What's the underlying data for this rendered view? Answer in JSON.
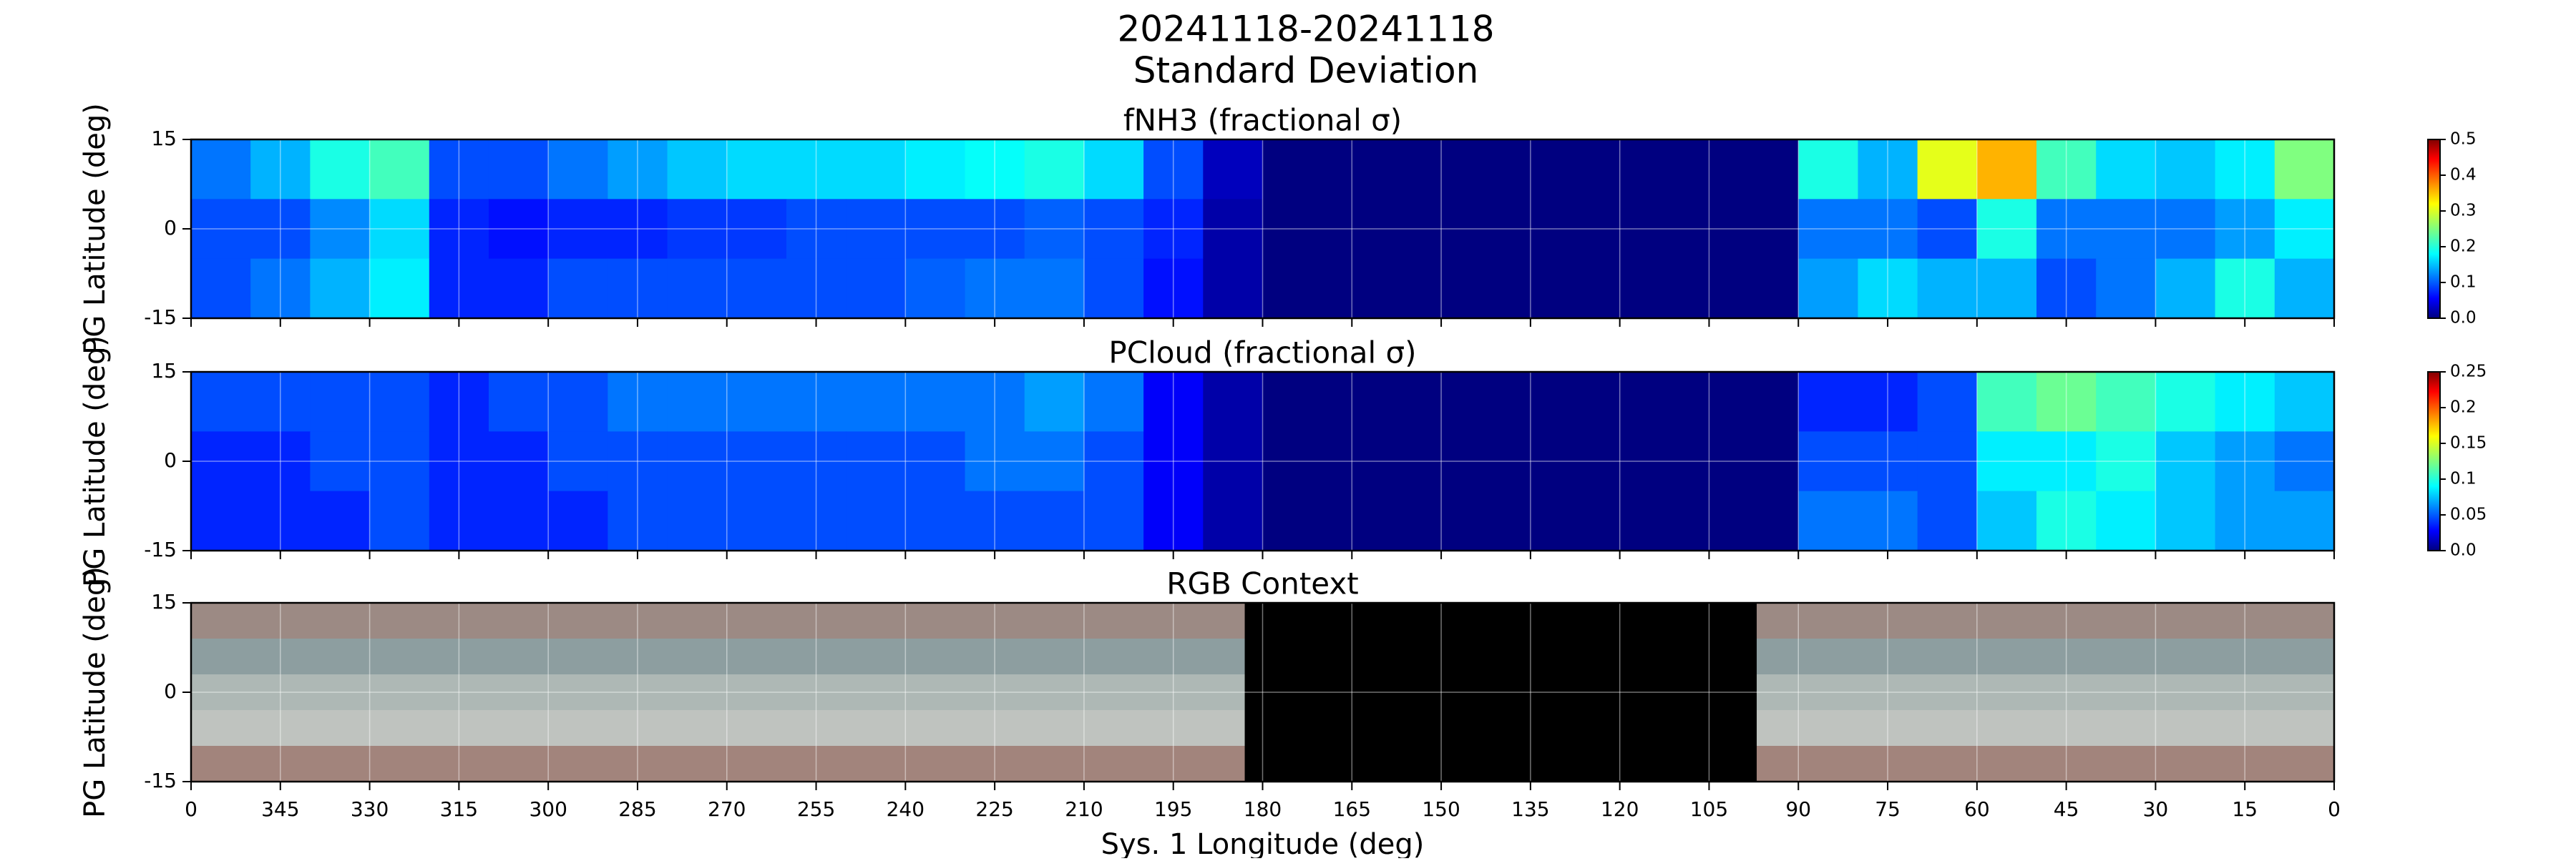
{
  "figure": {
    "title": "20241118-20241118",
    "subtitle": "Standard Deviation"
  },
  "chart_data": [
    {
      "type": "heatmap",
      "title": "fNH3 (fractional σ)",
      "ylabel": "PG Latitude (deg)",
      "xlim": [
        360,
        0
      ],
      "ylim": [
        -15,
        15
      ],
      "yticks": [
        -15,
        0,
        15
      ],
      "grid": true,
      "show_xtick_labels": false,
      "xticks": [
        {
          "value": 360,
          "label": "0"
        },
        345,
        330,
        315,
        300,
        285,
        270,
        255,
        240,
        225,
        210,
        195,
        180,
        165,
        150,
        135,
        120,
        105,
        90,
        75,
        60,
        45,
        30,
        15,
        0
      ],
      "x_edges": [
        360,
        350,
        340,
        330,
        320,
        310,
        300,
        290,
        280,
        270,
        260,
        250,
        240,
        230,
        220,
        210,
        200,
        190,
        180,
        170,
        160,
        150,
        140,
        130,
        120,
        110,
        100,
        90,
        80,
        70,
        60,
        50,
        40,
        30,
        20,
        10,
        0
      ],
      "y_edges": [
        15,
        5,
        -5,
        -15
      ],
      "colormap": "jet",
      "clim": [
        0,
        0.5
      ],
      "cticks": [
        {
          "value": 0,
          "label": "0.0"
        },
        0.1,
        0.2,
        0.3,
        0.4,
        0.5
      ],
      "values": [
        [
          0.12,
          0.15,
          0.2,
          0.22,
          0.1,
          0.1,
          0.12,
          0.14,
          0.16,
          0.17,
          0.17,
          0.17,
          0.18,
          0.19,
          0.2,
          0.17,
          0.1,
          0.03,
          0,
          0,
          0,
          0,
          0,
          0,
          0,
          0,
          0,
          0.2,
          0.15,
          0.3,
          0.35,
          0.22,
          0.17,
          0.16,
          0.18,
          0.25
        ],
        [
          0.1,
          0.1,
          0.13,
          0.17,
          0.08,
          0.07,
          0.08,
          0.08,
          0.09,
          0.09,
          0.1,
          0.1,
          0.1,
          0.1,
          0.11,
          0.1,
          0.08,
          0.02,
          0,
          0,
          0,
          0,
          0,
          0,
          0,
          0,
          0,
          0.12,
          0.12,
          0.1,
          0.2,
          0.12,
          0.12,
          0.12,
          0.14,
          0.18
        ],
        [
          0.1,
          0.12,
          0.15,
          0.18,
          0.08,
          0.08,
          0.1,
          0.1,
          0.1,
          0.1,
          0.1,
          0.1,
          0.11,
          0.12,
          0.12,
          0.1,
          0.07,
          0.02,
          0,
          0,
          0,
          0,
          0,
          0,
          0,
          0,
          0,
          0.14,
          0.17,
          0.15,
          0.15,
          0.1,
          0.12,
          0.15,
          0.2,
          0.15
        ]
      ]
    },
    {
      "type": "heatmap",
      "title": "PCloud (fractional σ)",
      "ylabel": "PG Latitude (deg)",
      "xlim": [
        360,
        0
      ],
      "ylim": [
        -15,
        15
      ],
      "yticks": [
        -15,
        0,
        15
      ],
      "grid": true,
      "show_xtick_labels": false,
      "xticks": [
        {
          "value": 360,
          "label": "0"
        },
        345,
        330,
        315,
        300,
        285,
        270,
        255,
        240,
        225,
        210,
        195,
        180,
        165,
        150,
        135,
        120,
        105,
        90,
        75,
        60,
        45,
        30,
        15,
        0
      ],
      "x_edges": [
        360,
        350,
        340,
        330,
        320,
        310,
        300,
        290,
        280,
        270,
        260,
        250,
        240,
        230,
        220,
        210,
        200,
        190,
        180,
        170,
        160,
        150,
        140,
        130,
        120,
        110,
        100,
        90,
        80,
        70,
        60,
        50,
        40,
        30,
        20,
        10,
        0
      ],
      "y_edges": [
        15,
        5,
        -5,
        -15
      ],
      "colormap": "jet",
      "clim": [
        0,
        0.25
      ],
      "cticks": [
        {
          "value": 0,
          "label": "0.0"
        },
        0.05,
        0.1,
        0.15,
        0.2,
        0.25
      ],
      "values": [
        [
          0.05,
          0.05,
          0.05,
          0.05,
          0.04,
          0.05,
          0.05,
          0.06,
          0.06,
          0.06,
          0.06,
          0.06,
          0.06,
          0.06,
          0.07,
          0.06,
          0.03,
          0.01,
          0,
          0,
          0,
          0,
          0,
          0,
          0,
          0,
          0,
          0.04,
          0.04,
          0.05,
          0.11,
          0.12,
          0.11,
          0.1,
          0.09,
          0.08
        ],
        [
          0.04,
          0.04,
          0.05,
          0.05,
          0.04,
          0.04,
          0.05,
          0.05,
          0.05,
          0.05,
          0.05,
          0.05,
          0.05,
          0.06,
          0.06,
          0.05,
          0.03,
          0.01,
          0,
          0,
          0,
          0,
          0,
          0,
          0,
          0,
          0,
          0.05,
          0.05,
          0.05,
          0.09,
          0.09,
          0.1,
          0.08,
          0.07,
          0.06
        ],
        [
          0.04,
          0.04,
          0.04,
          0.05,
          0.04,
          0.04,
          0.04,
          0.05,
          0.05,
          0.05,
          0.05,
          0.05,
          0.05,
          0.05,
          0.05,
          0.05,
          0.03,
          0.01,
          0,
          0,
          0,
          0,
          0,
          0,
          0,
          0,
          0,
          0.06,
          0.06,
          0.05,
          0.08,
          0.1,
          0.09,
          0.08,
          0.07,
          0.07
        ]
      ]
    },
    {
      "type": "rgb",
      "title": "RGB Context",
      "ylabel": "PG Latitude (deg)",
      "xlabel": "Sys. 1 Longitude (deg)",
      "xlim": [
        360,
        0
      ],
      "ylim": [
        -15,
        15
      ],
      "yticks": [
        -15,
        0,
        15
      ],
      "grid": true,
      "show_xtick_labels": true,
      "xticks": [
        {
          "value": 360,
          "label": "0"
        },
        345,
        330,
        315,
        300,
        285,
        270,
        255,
        240,
        225,
        210,
        195,
        180,
        165,
        150,
        135,
        120,
        105,
        90,
        75,
        60,
        45,
        30,
        15,
        0
      ],
      "band_edges": [
        15,
        9,
        3,
        -3,
        -9,
        -15
      ],
      "band_colors": [
        "#9c8a84",
        "#8d9ea0",
        "#aeb8b5",
        "#bfc3bf",
        "#a2847c"
      ],
      "no_data_range": [
        183,
        97
      ],
      "no_data_color": "#000000"
    }
  ]
}
